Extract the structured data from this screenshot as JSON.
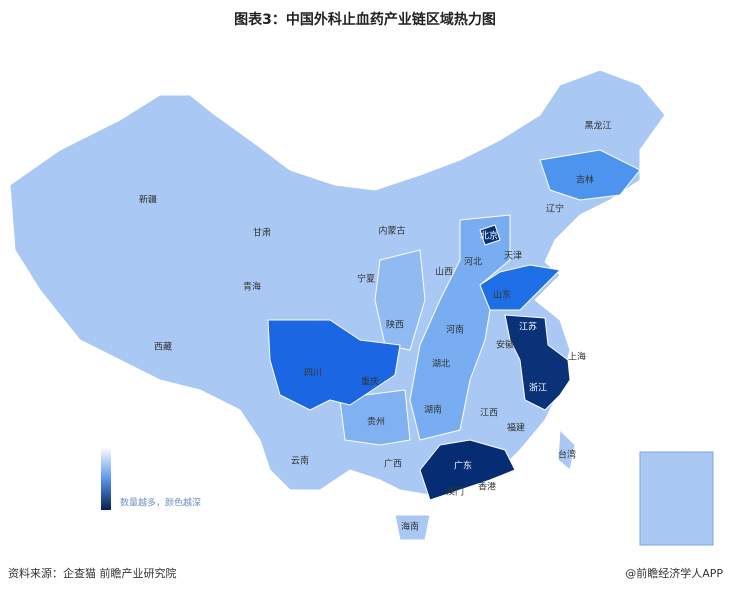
{
  "title": "图表3：中国外科止血药产业链区域热力图",
  "regions": [
    "新疆",
    "甘肃",
    "内蒙古",
    "黑龙江",
    "吉林",
    "辽宁",
    "北京",
    "天津",
    "河北",
    "山西",
    "宁夏",
    "青海",
    "山东",
    "陕西",
    "河南",
    "江苏",
    "安徽",
    "上海",
    "西藏",
    "四川",
    "重庆",
    "湖北",
    "浙江",
    "湖南",
    "江西",
    "福建",
    "贵州",
    "云南",
    "广西",
    "广东",
    "台湾",
    "澳门",
    "香港",
    "海南"
  ],
  "legend": "数量越多，颜色越深",
  "source": "资料来源：企查猫 前瞻产业研究院",
  "brand": "@前瞻经济学人APP"
}
